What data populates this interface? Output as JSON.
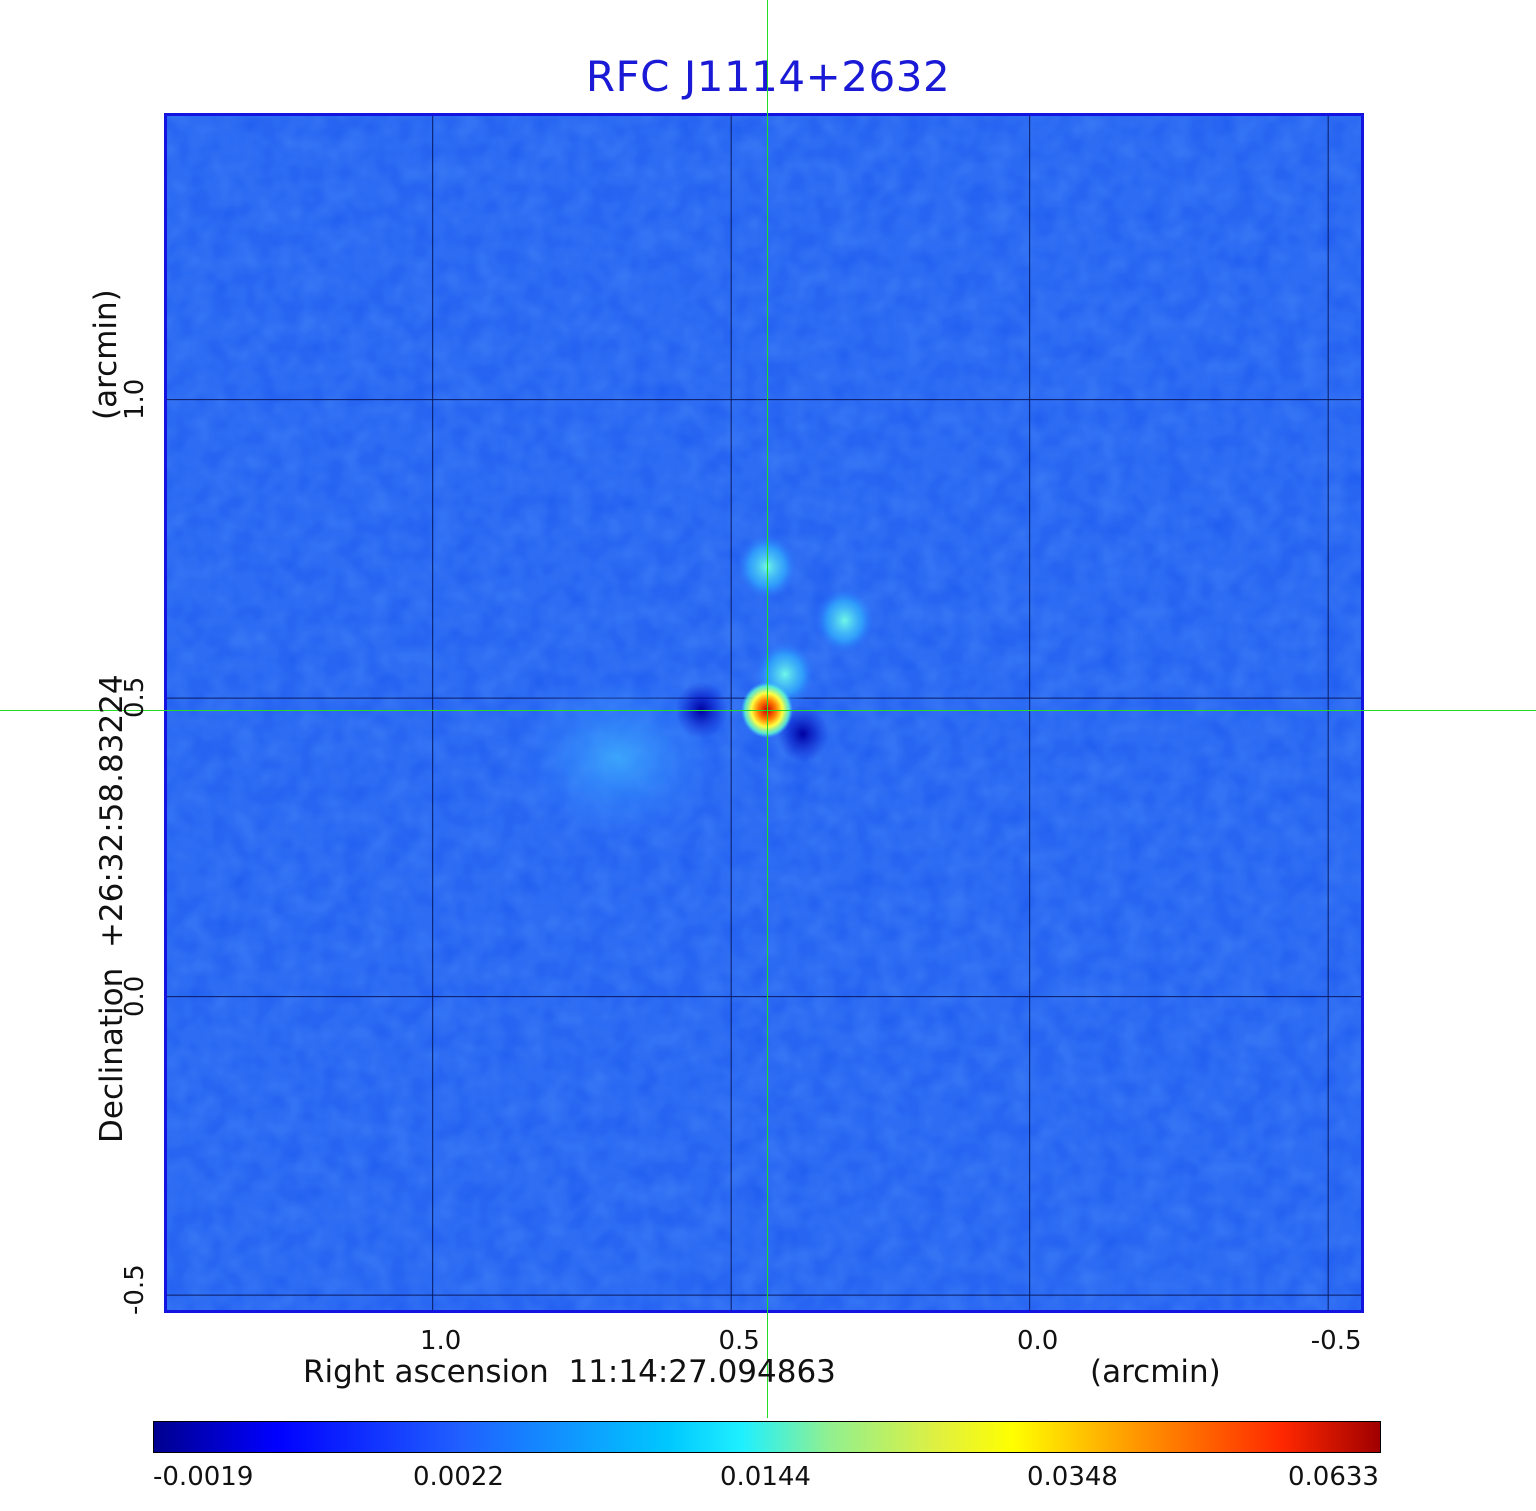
{
  "chart_data": {
    "type": "heatmap",
    "title": "RFC J1114+2632",
    "xlabel": "Right ascension  11:14:27.094863",
    "xunit": "(arcmin)",
    "ylabel": "Declination  +26:32:58.83224",
    "yunit": "(arcmin)",
    "x_ticks": [
      "1.0",
      "0.5",
      "0.0",
      "-0.5"
    ],
    "x_tick_values": [
      1.0,
      0.5,
      0.0,
      -0.5
    ],
    "y_ticks": [
      "1.0",
      "0.5",
      "0.0",
      "-0.5"
    ],
    "y_tick_values": [
      1.0,
      0.5,
      0.0,
      -0.5
    ],
    "xlim": [
      1.445,
      -0.555
    ],
    "ylim": [
      -0.525,
      1.475
    ],
    "grid": true,
    "crosshair": {
      "x": 0.44,
      "y": 0.48
    },
    "colorbar": {
      "ticks": [
        "-0.0019",
        "0.0022",
        "0.0144",
        "0.0348",
        "0.0633"
      ],
      "values": [
        -0.0019,
        0.0022,
        0.0144,
        0.0348,
        0.0633
      ],
      "colormap": "jet"
    },
    "peak": {
      "x": 0.44,
      "y": 0.48,
      "value": 0.0633
    },
    "features": [
      {
        "x": 0.44,
        "y": 0.72,
        "value": 0.0144
      },
      {
        "x": 0.31,
        "y": 0.63,
        "value": 0.0144
      },
      {
        "x": 0.41,
        "y": 0.54,
        "value": 0.0144
      },
      {
        "x": 0.55,
        "y": 0.48,
        "value": -0.0019
      },
      {
        "x": 0.38,
        "y": 0.44,
        "value": -0.0019
      }
    ]
  },
  "colors": {
    "title": "#1a1ad6",
    "frame": "#1414e0",
    "crosshair": "#22dd22",
    "background": "#1f5cf0"
  }
}
